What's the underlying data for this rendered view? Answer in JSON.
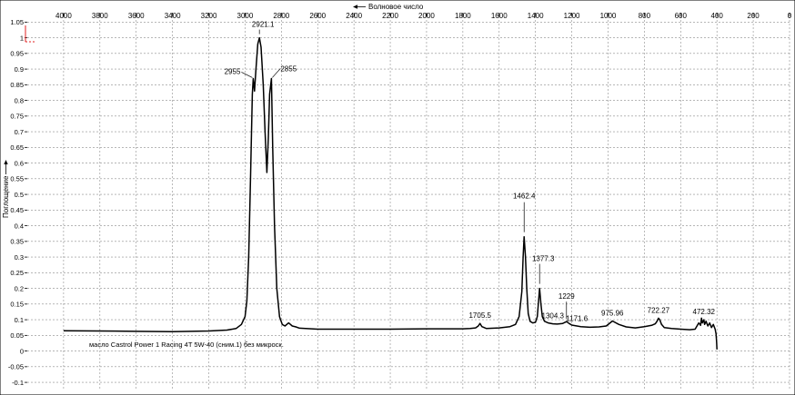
{
  "chart_data": {
    "type": "line",
    "xlabel": "Волновое число",
    "ylabel": "Поглощение",
    "x_reversed": true,
    "xlim": [
      4200,
      0
    ],
    "ylim": [
      -0.12,
      1.08
    ],
    "grid": true,
    "x_ticks": [
      4000,
      3800,
      3600,
      3400,
      3200,
      3000,
      2800,
      2600,
      2400,
      2200,
      2000,
      1800,
      1600,
      1400,
      1200,
      1000,
      800,
      600,
      400,
      200,
      0
    ],
    "y_ticks": [
      -0.1,
      -0.05,
      0,
      0.05,
      0.1,
      0.15,
      0.2,
      0.25,
      0.3,
      0.35,
      0.4,
      0.45,
      0.5,
      0.55,
      0.6,
      0.65,
      0.7,
      0.75,
      0.8,
      0.85,
      0.9,
      0.95,
      1,
      1.05
    ],
    "series": [
      {
        "name": "масло Castrol Power 1 Racing 4T 5W-40 (сним.1) без  микроск.",
        "color": "#000000",
        "x": [
          4000,
          3800,
          3600,
          3400,
          3200,
          3100,
          3050,
          3020,
          3000,
          2990,
          2980,
          2970,
          2960,
          2955,
          2948,
          2940,
          2930,
          2921.1,
          2912,
          2900,
          2890,
          2880,
          2872,
          2865,
          2855,
          2848,
          2838,
          2825,
          2810,
          2795,
          2780,
          2760,
          2740,
          2720,
          2700,
          2600,
          2400,
          2200,
          2000,
          1800,
          1760,
          1730,
          1715,
          1705.5,
          1695,
          1670,
          1600,
          1540,
          1510,
          1490,
          1475,
          1468,
          1462.4,
          1455,
          1448,
          1440,
          1430,
          1415,
          1400,
          1390,
          1383,
          1377.3,
          1370,
          1362,
          1350,
          1330,
          1304.3,
          1280,
          1250,
          1229,
          1215,
          1200,
          1171.6,
          1150,
          1100,
          1050,
          1010,
          975.96,
          940,
          900,
          850,
          800,
          760,
          740,
          730,
          722.27,
          715,
          705,
          690,
          650,
          600,
          550,
          520,
          500,
          490,
          485,
          480,
          472.32,
          468,
          460,
          450,
          440,
          430,
          420,
          410,
          405,
          402,
          400
        ],
        "y": [
          0.065,
          0.064,
          0.063,
          0.062,
          0.064,
          0.067,
          0.072,
          0.085,
          0.11,
          0.16,
          0.3,
          0.55,
          0.82,
          0.87,
          0.83,
          0.9,
          0.98,
          1.0,
          0.97,
          0.85,
          0.7,
          0.57,
          0.68,
          0.82,
          0.87,
          0.65,
          0.4,
          0.2,
          0.11,
          0.085,
          0.08,
          0.09,
          0.08,
          0.077,
          0.073,
          0.07,
          0.07,
          0.07,
          0.071,
          0.071,
          0.072,
          0.074,
          0.08,
          0.088,
          0.078,
          0.072,
          0.074,
          0.078,
          0.085,
          0.11,
          0.19,
          0.3,
          0.365,
          0.3,
          0.2,
          0.12,
          0.095,
          0.09,
          0.092,
          0.11,
          0.16,
          0.2,
          0.15,
          0.11,
          0.095,
          0.09,
          0.087,
          0.086,
          0.088,
          0.094,
          0.088,
          0.083,
          0.08,
          0.078,
          0.076,
          0.077,
          0.08,
          0.096,
          0.085,
          0.077,
          0.074,
          0.078,
          0.082,
          0.087,
          0.095,
          0.105,
          0.1,
          0.085,
          0.075,
          0.072,
          0.07,
          0.068,
          0.07,
          0.09,
          0.082,
          0.105,
          0.09,
          0.1,
          0.085,
          0.095,
          0.08,
          0.09,
          0.075,
          0.085,
          0.07,
          0.055,
          0.03,
          0.005
        ]
      }
    ],
    "annotations": [
      {
        "text": "2921.1",
        "x": 2921.1,
        "y": 1.0
      },
      {
        "text": "2955",
        "x": 2955,
        "y": 0.87
      },
      {
        "text": "2855",
        "x": 2855,
        "y": 0.87
      },
      {
        "text": "1462.4",
        "x": 1462.4,
        "y": 0.365
      },
      {
        "text": "1377.3",
        "x": 1377.3,
        "y": 0.2
      },
      {
        "text": "1229",
        "x": 1229,
        "y": 0.094
      },
      {
        "text": "1705.5",
        "x": 1705.5,
        "y": 0.088
      },
      {
        "text": "1304.3",
        "x": 1304.3,
        "y": 0.087
      },
      {
        "text": "1171.6",
        "x": 1171.6,
        "y": 0.078
      },
      {
        "text": "975.96",
        "x": 975.96,
        "y": 0.096
      },
      {
        "text": "722.27",
        "x": 722.27,
        "y": 0.105
      },
      {
        "text": "472.32",
        "x": 472.32,
        "y": 0.1
      }
    ]
  }
}
